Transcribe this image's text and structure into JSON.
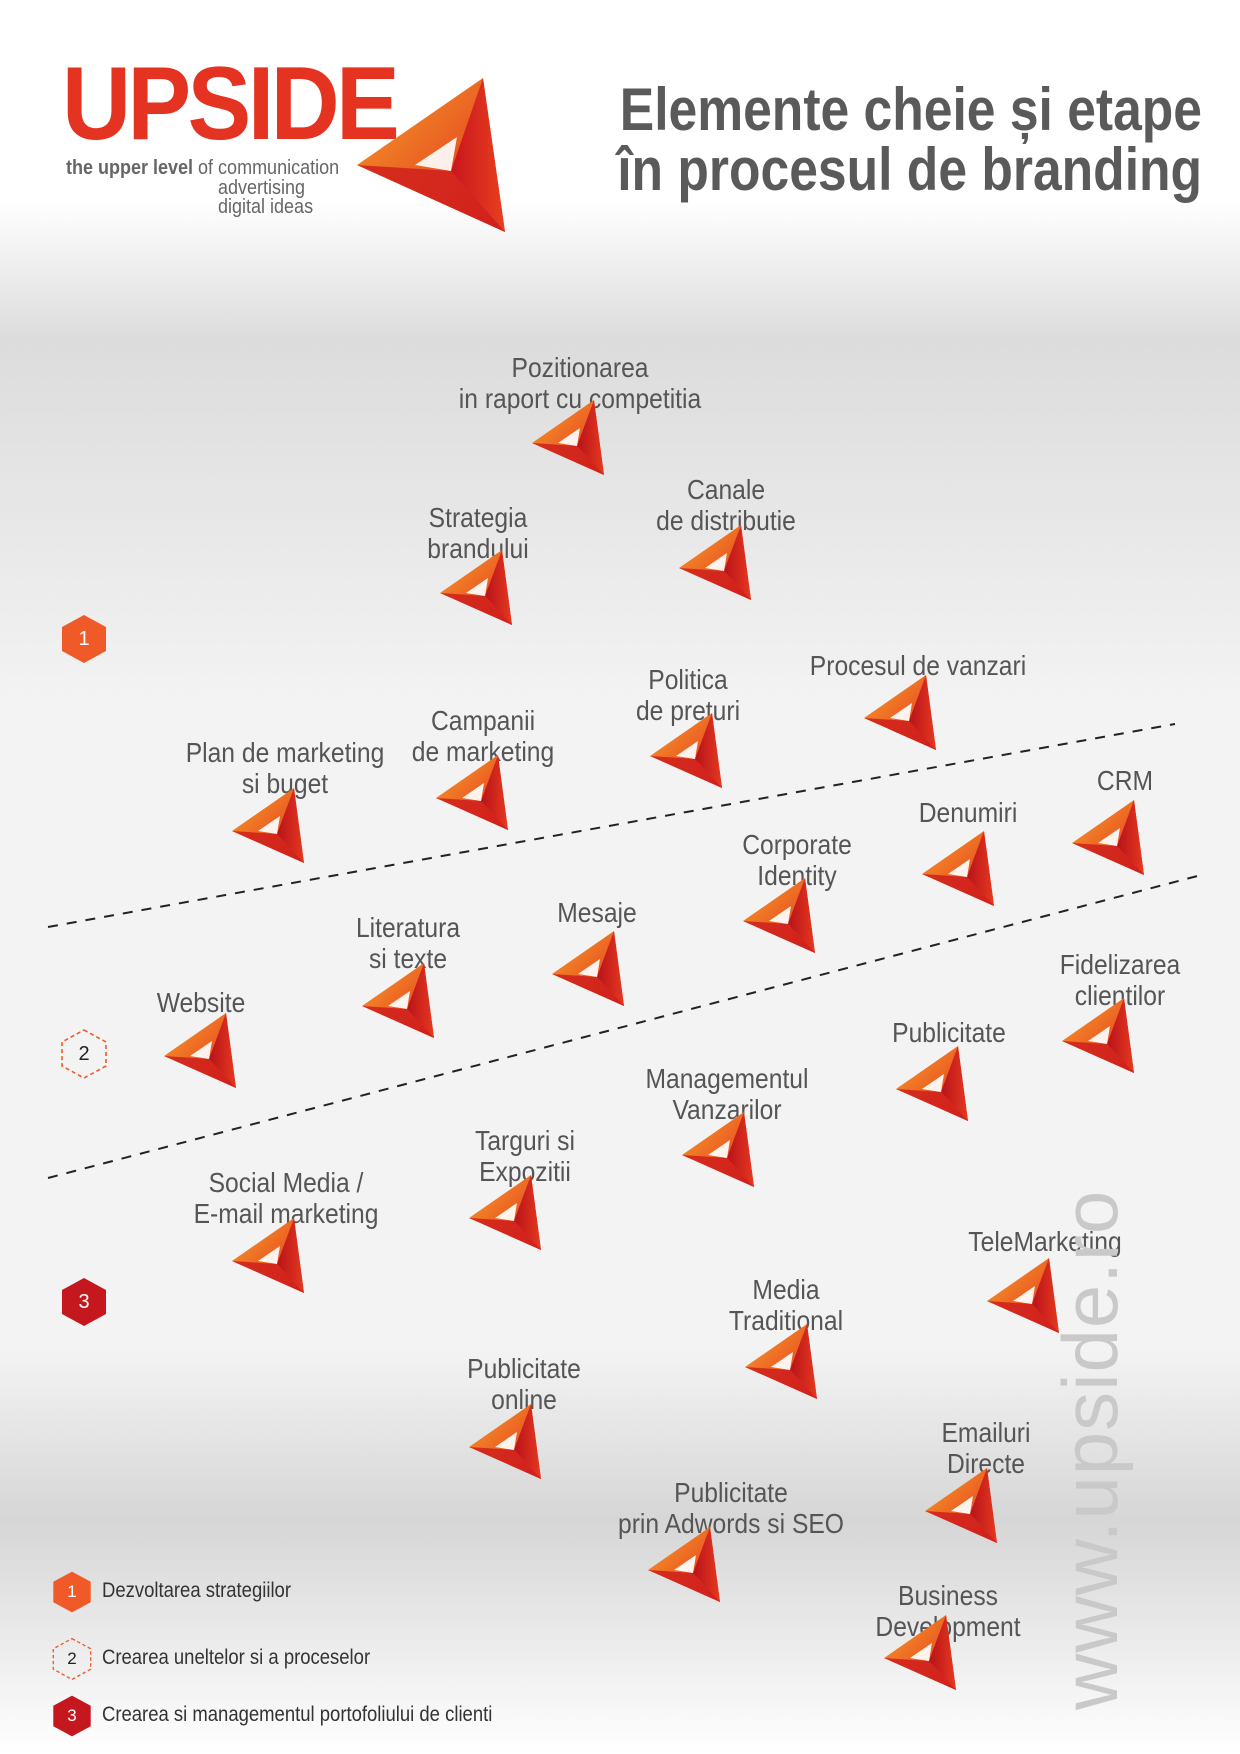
{
  "brand": {
    "name": "UPSIDE",
    "tagline_bold": "the upper level",
    "tagline_rest": "of communication",
    "tagline_line2": "advertising",
    "tagline_line3": "digital ideas",
    "website": "www.upside.ro",
    "colors": {
      "primary": "#e53321",
      "accent": "#f07a24",
      "dark": "#c4171e"
    }
  },
  "title": {
    "line1": "Elemente cheie și etape",
    "line2": "în procesul de branding"
  },
  "stage_markers": [
    {
      "label": "1",
      "color": "#f05a28",
      "style": "solid"
    },
    {
      "label": "2",
      "color": "#f05a28",
      "style": "dashed"
    },
    {
      "label": "3",
      "color": "#c4171e",
      "style": "solid"
    }
  ],
  "nodes": [
    {
      "label": "Pozitionarea\nin raport cu competitia",
      "stage": 1
    },
    {
      "label": "Strategia\nbrandului",
      "stage": 1
    },
    {
      "label": "Canale\nde distributie",
      "stage": 1
    },
    {
      "label": "Politica\nde preturi",
      "stage": 1
    },
    {
      "label": "Procesul de vanzari",
      "stage": 1
    },
    {
      "label": "Plan de marketing\nsi buget",
      "stage": 1
    },
    {
      "label": "Campanii\nde marketing",
      "stage": 1
    },
    {
      "label": "CRM",
      "stage": 2
    },
    {
      "label": "Denumiri",
      "stage": 2
    },
    {
      "label": "Corporate\nIdentity",
      "stage": 2
    },
    {
      "label": "Mesaje",
      "stage": 2
    },
    {
      "label": "Literatura\nsi texte",
      "stage": 2
    },
    {
      "label": "Website",
      "stage": 2
    },
    {
      "label": "Fidelizarea\nclientilor",
      "stage": 3
    },
    {
      "label": "Publicitate",
      "stage": 3
    },
    {
      "label": "Managementul\nVanzarilor",
      "stage": 3
    },
    {
      "label": "Targuri si\nExpozitii",
      "stage": 3
    },
    {
      "label": "Social Media /\nE-mail marketing",
      "stage": 3
    },
    {
      "label": "TeleMarketing",
      "stage": 3
    },
    {
      "label": "Media\nTraditional",
      "stage": 3
    },
    {
      "label": "Publicitate\nonline",
      "stage": 3
    },
    {
      "label": "Emailuri\nDirecte",
      "stage": 3
    },
    {
      "label": "Publicitate\nprin Adwords si SEO",
      "stage": 3
    },
    {
      "label": "Business\nDevelopment",
      "stage": 3
    }
  ],
  "legend": [
    {
      "number": "1",
      "text": "Dezvoltarea strategiilor"
    },
    {
      "number": "2",
      "text": "Crearea uneltelor si a proceselor"
    },
    {
      "number": "3",
      "text": "Crearea si managementul portofoliului de clienti"
    }
  ]
}
